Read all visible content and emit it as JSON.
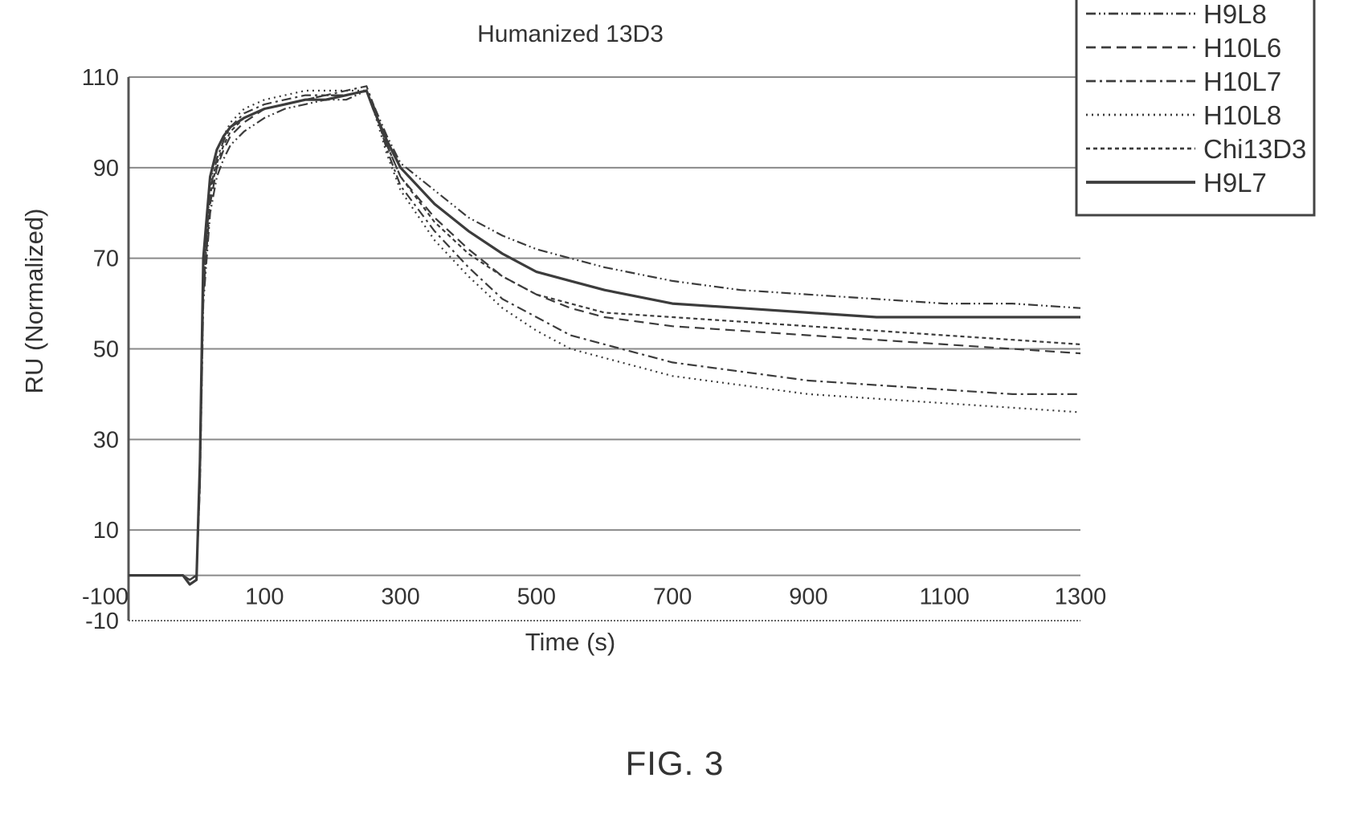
{
  "chart_data": {
    "type": "line",
    "title": "Humanized 13D3",
    "xlabel": "Time (s)",
    "ylabel": "RU (Normalized)",
    "figure_label": "FIG. 3",
    "x_tick_labels": [
      "-100",
      "100",
      "300",
      "500",
      "700",
      "900",
      "1100",
      "1300"
    ],
    "y_tick_labels": [
      "110",
      "90",
      "70",
      "50",
      "30",
      "10",
      "-10"
    ],
    "xlim": [
      -100,
      1300
    ],
    "ylim": [
      -10,
      110
    ],
    "grid": "horizontal",
    "legend_position": "top-right",
    "series": [
      {
        "name": "H9L8",
        "dash": "dashdotdot",
        "x": [
          -100,
          -20,
          -10,
          0,
          5,
          10,
          20,
          30,
          40,
          50,
          70,
          100,
          130,
          160,
          190,
          220,
          250,
          260,
          280,
          300,
          350,
          400,
          450,
          500,
          550,
          600,
          700,
          800,
          900,
          1000,
          1100,
          1200,
          1300
        ],
        "y": [
          0,
          0,
          -1,
          0,
          20,
          60,
          80,
          88,
          92,
          95,
          98,
          101,
          103,
          104,
          105,
          105,
          107,
          104,
          97,
          91,
          85,
          79,
          75,
          72,
          70,
          68,
          65,
          63,
          62,
          61,
          60,
          60,
          59
        ]
      },
      {
        "name": "H10L6",
        "dash": "dashed",
        "x": [
          -100,
          -20,
          -10,
          0,
          5,
          10,
          20,
          30,
          40,
          50,
          70,
          100,
          130,
          160,
          190,
          220,
          250,
          260,
          280,
          300,
          350,
          400,
          450,
          500,
          550,
          600,
          700,
          800,
          900,
          1000,
          1100,
          1200,
          1300
        ],
        "y": [
          0,
          0,
          -1,
          0,
          20,
          62,
          82,
          90,
          94,
          97,
          100,
          103,
          104,
          105,
          106,
          106,
          107,
          103,
          95,
          88,
          79,
          72,
          66,
          62,
          59,
          57,
          55,
          54,
          53,
          52,
          51,
          50,
          49
        ]
      },
      {
        "name": "H10L7",
        "dash": "dashdot",
        "x": [
          -100,
          -20,
          -10,
          0,
          5,
          10,
          20,
          30,
          40,
          50,
          70,
          100,
          130,
          160,
          190,
          220,
          250,
          260,
          280,
          300,
          350,
          400,
          450,
          500,
          550,
          600,
          700,
          800,
          900,
          1000,
          1100,
          1200,
          1300
        ],
        "y": [
          0,
          0,
          -1,
          0,
          22,
          65,
          85,
          92,
          96,
          99,
          102,
          104,
          105,
          106,
          106,
          107,
          108,
          104,
          94,
          86,
          76,
          68,
          61,
          57,
          53,
          51,
          47,
          45,
          43,
          42,
          41,
          40,
          40
        ]
      },
      {
        "name": "H10L8",
        "dash": "dotted",
        "x": [
          -100,
          -20,
          -10,
          0,
          5,
          10,
          20,
          30,
          40,
          50,
          70,
          100,
          130,
          160,
          190,
          220,
          250,
          260,
          280,
          300,
          350,
          400,
          450,
          500,
          550,
          600,
          700,
          800,
          900,
          1000,
          1100,
          1200,
          1300
        ],
        "y": [
          0,
          0,
          -1,
          0,
          22,
          66,
          86,
          94,
          97,
          100,
          103,
          105,
          106,
          107,
          107,
          107,
          107,
          103,
          93,
          85,
          74,
          66,
          59,
          54,
          50,
          48,
          44,
          42,
          40,
          39,
          38,
          37,
          36
        ]
      },
      {
        "name": "Chi13D3",
        "dash": "smalldash",
        "x": [
          -100,
          -20,
          -10,
          0,
          5,
          10,
          20,
          30,
          40,
          50,
          70,
          100,
          130,
          160,
          190,
          220,
          250,
          260,
          280,
          300,
          350,
          400,
          450,
          500,
          550,
          600,
          700,
          800,
          900,
          1000,
          1100,
          1200,
          1300
        ],
        "y": [
          0,
          0,
          -1,
          0,
          20,
          63,
          84,
          91,
          95,
          98,
          101,
          103,
          104,
          105,
          106,
          106,
          107,
          103,
          95,
          88,
          78,
          71,
          66,
          62,
          60,
          58,
          57,
          56,
          55,
          54,
          53,
          52,
          51
        ]
      },
      {
        "name": "H9L7",
        "dash": "solid",
        "x": [
          -100,
          -20,
          -10,
          0,
          5,
          10,
          20,
          30,
          40,
          50,
          70,
          100,
          130,
          160,
          190,
          220,
          250,
          260,
          280,
          300,
          350,
          400,
          450,
          500,
          550,
          600,
          700,
          800,
          900,
          1000,
          1100,
          1200,
          1300
        ],
        "y": [
          0,
          0,
          -2,
          -1,
          25,
          70,
          88,
          94,
          97,
          99,
          101,
          103,
          104,
          105,
          105,
          106,
          107,
          103,
          96,
          90,
          82,
          76,
          71,
          67,
          65,
          63,
          60,
          59,
          58,
          57,
          57,
          57,
          57
        ]
      }
    ]
  }
}
